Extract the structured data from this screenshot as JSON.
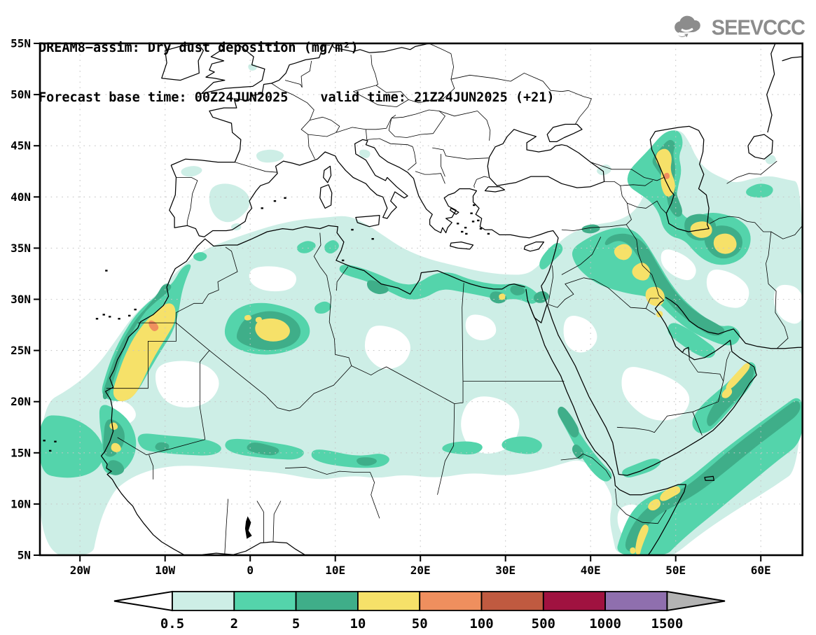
{
  "header": {
    "title": "DREAM8−assim: Dry dust deposition (mg/m²)",
    "forecast_base": "Forecast base time: 00Z24JUN2025",
    "valid_time": "valid time: 21Z24JUN2025 (+21)"
  },
  "logo": {
    "text": "SEEVCCC"
  },
  "map": {
    "x_tick_labels": [
      "20W",
      "10W",
      "0",
      "10E",
      "20E",
      "30E",
      "40E",
      "50E",
      "60E"
    ],
    "x_tick_lons": [
      -20,
      -10,
      0,
      10,
      20,
      30,
      40,
      50,
      60
    ],
    "y_tick_labels": [
      "55N",
      "50N",
      "45N",
      "40N",
      "35N",
      "30N",
      "25N",
      "20N",
      "15N",
      "10N",
      "5N"
    ],
    "y_tick_lats": [
      55,
      50,
      45,
      40,
      35,
      30,
      25,
      20,
      15,
      10,
      5
    ],
    "palette": {
      "level_0_5": "#cdeee6",
      "level_2": "#54d4ab",
      "level_5": "#3fae89",
      "level_10": "#f6e169",
      "level_50": "#ef8f5e",
      "level_100": "#c05a40",
      "level_500": "#a01240",
      "level_1000": "#8f6fae",
      "overflow": "#b3b3b3",
      "background": "#ffffff",
      "grid": "#c6c6c6",
      "coast": "#000000"
    }
  },
  "colorbar": {
    "levels": [
      "0.5",
      "2",
      "5",
      "10",
      "50",
      "100",
      "500",
      "1000",
      "1500"
    ],
    "segment_colors": [
      "#cdeee6",
      "#54d4ab",
      "#3fae89",
      "#f6e169",
      "#ef8f5e",
      "#c05a40",
      "#a01240",
      "#8f6fae"
    ],
    "underflow_color": "#ffffff",
    "overflow_color": "#b3b3b3"
  },
  "chart_data": {
    "type": "filled_contour_map",
    "title": "DREAM8−assim: Dry dust deposition (mg/m²)",
    "variable": "Dry dust deposition",
    "units": "mg/m²",
    "model": "DREAM8-assim",
    "forecast_base_time": "00Z24JUN2025",
    "valid_time": "21Z24JUN2025 (+21)",
    "lon_range": [
      -24.7,
      64.9
    ],
    "lat_range": [
      5,
      55
    ],
    "contour_levels": [
      0.5,
      2,
      5,
      10,
      50,
      100,
      500,
      1000,
      1500
    ],
    "level_colors": [
      "#ffffff",
      "#cdeee6",
      "#54d4ab",
      "#3fae89",
      "#f6e169",
      "#ef8f5e",
      "#c05a40",
      "#a01240",
      "#8f6fae",
      "#b3b3b3"
    ],
    "grid": "dotted 10x5 degrees",
    "notable_maxima": [
      {
        "region": "Western Sahara coastal band",
        "peak_level": "50–100"
      },
      {
        "region": "Central Algeria",
        "peak_level": "10–50"
      },
      {
        "region": "Senegal / Mauritania",
        "peak_level": "10–50"
      },
      {
        "region": "Iraq / Persian Gulf",
        "peak_level": "10–50"
      },
      {
        "region": "Azerbaijan / W Caspian coast",
        "peak_level": "50–100"
      },
      {
        "region": "SE Caspian and NE Iran",
        "peak_level": "10–50"
      },
      {
        "region": "Oman coast",
        "peak_level": "10–50"
      },
      {
        "region": "Somalia coast / Arabian Sea plume",
        "peak_level": "10–50"
      },
      {
        "region": "Nile delta / N Egypt",
        "peak_level": "10–50"
      }
    ]
  }
}
